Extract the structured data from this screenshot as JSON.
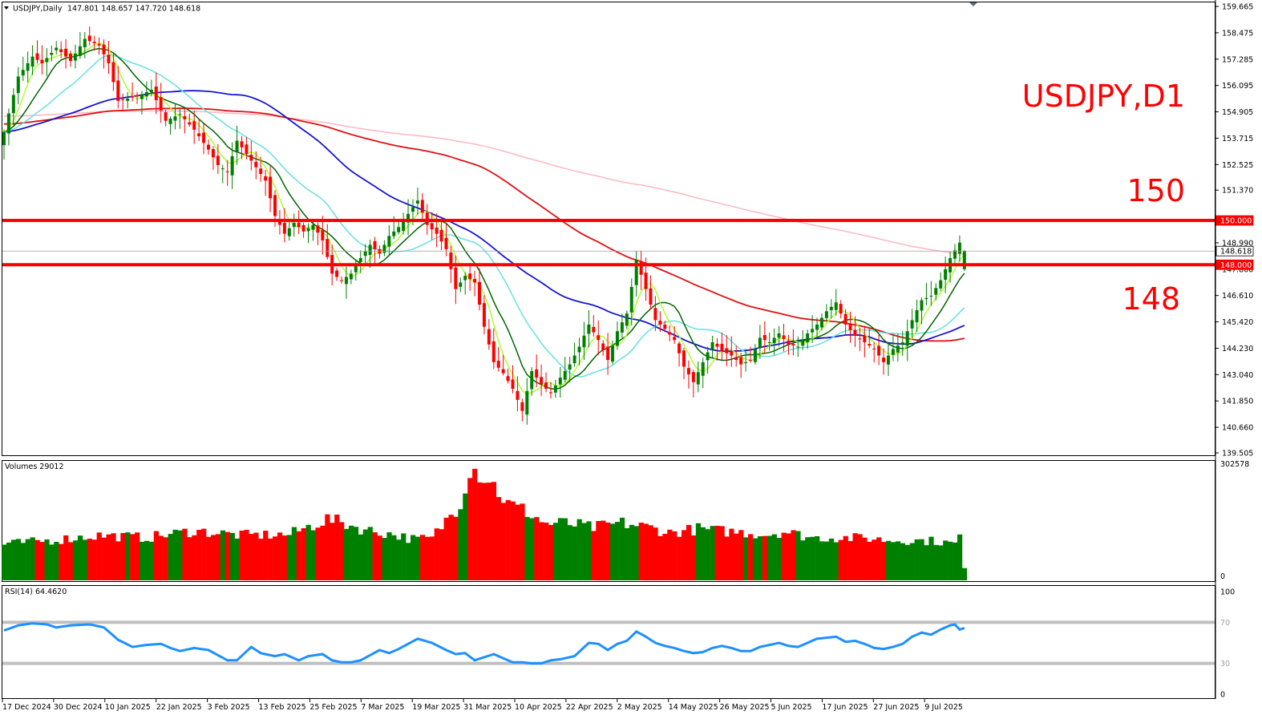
{
  "window": {
    "title": "USDJPY,Daily",
    "ohlc": "147.801 148.657 147.720 148.618"
  },
  "annotations": {
    "symbol_label": "USDJPY,D1",
    "level_150": "150",
    "level_148": "148"
  },
  "colors": {
    "up": "#008000",
    "down": "#ff0000",
    "ma_fast": "#adff2f",
    "ma_dark": "#006400",
    "ma_cyan": "#66e0e0",
    "ma_blue": "#1515d0",
    "ma_red": "#e01010",
    "ma_pink": "#ffb6c1",
    "hline": "#ff0000",
    "rsi": "#1e90ff",
    "rsi_level": "#c0c0c0"
  },
  "chart_data": [
    {
      "type": "candlestick",
      "title": "USDJPY,Daily",
      "ylim": [
        139.505,
        159.665
      ],
      "y_ticks": [
        "159.665",
        "158.475",
        "157.285",
        "156.095",
        "154.905",
        "153.715",
        "152.525",
        "151.370",
        "150.000",
        "148.990",
        "148.618",
        "148.000",
        "147.800",
        "146.610",
        "145.420",
        "144.230",
        "143.040",
        "141.850",
        "140.660",
        "139.505"
      ],
      "price_tags": [
        {
          "label": "150.000",
          "value": 150.0,
          "kind": "level"
        },
        {
          "label": "148.618",
          "value": 148.618,
          "kind": "current"
        },
        {
          "label": "148.000",
          "value": 148.0,
          "kind": "level"
        }
      ],
      "horizontal_levels": [
        150.0,
        148.0
      ],
      "x_tick_labels": [
        "17 Dec 2024",
        "30 Dec 2024",
        "10 Jan 2025",
        "22 Jan 2025",
        "3 Feb 2025",
        "13 Feb 2025",
        "25 Feb 2025",
        "7 Mar 2025",
        "19 Mar 2025",
        "31 Mar 2025",
        "10 Apr 2025",
        "22 Apr 2025",
        "2 May 2025",
        "14 May 2025",
        "26 May 2025",
        "5 Jun 2025",
        "17 Jun 2025",
        "27 Jun 2025",
        "9 Jul 2025"
      ],
      "anchors": [
        [
          0,
          154.0
        ],
        [
          3,
          156.5
        ],
        [
          6,
          157.4
        ],
        [
          8,
          157.1
        ],
        [
          11,
          157.8
        ],
        [
          14,
          157.2
        ],
        [
          17,
          158.2
        ],
        [
          20,
          157.9
        ],
        [
          22,
          157.1
        ],
        [
          24,
          155.4
        ],
        [
          28,
          155.6
        ],
        [
          31,
          155.9
        ],
        [
          34,
          154.5
        ],
        [
          37,
          154.8
        ],
        [
          40,
          154.1
        ],
        [
          43,
          153.2
        ],
        [
          45,
          152.5
        ],
        [
          47,
          152.2
        ],
        [
          49,
          153.6
        ],
        [
          51,
          153.0
        ],
        [
          53,
          152.4
        ],
        [
          55,
          151.8
        ],
        [
          57,
          150.2
        ],
        [
          59,
          149.4
        ],
        [
          61,
          149.9
        ],
        [
          63,
          149.5
        ],
        [
          65,
          149.8
        ],
        [
          67,
          149.1
        ],
        [
          69,
          147.6
        ],
        [
          71,
          147.3
        ],
        [
          73,
          147.6
        ],
        [
          75,
          148.3
        ],
        [
          77,
          148.9
        ],
        [
          79,
          148.5
        ],
        [
          81,
          149.3
        ],
        [
          83,
          149.7
        ],
        [
          85,
          150.3
        ],
        [
          87,
          150.9
        ],
        [
          89,
          149.8
        ],
        [
          91,
          149.4
        ],
        [
          93,
          148.7
        ],
        [
          95,
          146.9
        ],
        [
          97,
          147.5
        ],
        [
          99,
          147.2
        ],
        [
          101,
          145.2
        ],
        [
          103,
          143.6
        ],
        [
          105,
          143.1
        ],
        [
          107,
          142.4
        ],
        [
          109,
          141.4
        ],
        [
          111,
          143.2
        ],
        [
          113,
          142.6
        ],
        [
          115,
          142.2
        ],
        [
          117,
          142.9
        ],
        [
          119,
          143.5
        ],
        [
          121,
          144.3
        ],
        [
          123,
          145.3
        ],
        [
          125,
          144.6
        ],
        [
          127,
          143.7
        ],
        [
          129,
          145.0
        ],
        [
          131,
          145.8
        ],
        [
          133,
          148.2
        ],
        [
          135,
          146.9
        ],
        [
          137,
          145.5
        ],
        [
          139,
          145.1
        ],
        [
          141,
          144.6
        ],
        [
          143,
          143.4
        ],
        [
          145,
          142.7
        ],
        [
          147,
          143.6
        ],
        [
          149,
          144.5
        ],
        [
          151,
          144.1
        ],
        [
          153,
          143.9
        ],
        [
          155,
          143.5
        ],
        [
          157,
          143.7
        ],
        [
          159,
          144.7
        ],
        [
          161,
          144.5
        ],
        [
          163,
          144.9
        ],
        [
          165,
          144.4
        ],
        [
          167,
          144.3
        ],
        [
          169,
          144.9
        ],
        [
          171,
          145.3
        ],
        [
          173,
          145.9
        ],
        [
          175,
          146.3
        ],
        [
          177,
          145.3
        ],
        [
          179,
          144.8
        ],
        [
          181,
          144.5
        ],
        [
          183,
          144.2
        ],
        [
          185,
          143.6
        ],
        [
          187,
          144.2
        ],
        [
          189,
          144.5
        ],
        [
          191,
          145.5
        ],
        [
          193,
          146.4
        ],
        [
          195,
          146.6
        ],
        [
          197,
          147.3
        ],
        [
          199,
          148.3
        ],
        [
          201,
          149.0
        ],
        [
          202,
          148.618
        ]
      ],
      "moving_averages": [
        {
          "id": "ma_fast",
          "period": 5
        },
        {
          "id": "ma_dark",
          "period": 10
        },
        {
          "id": "ma_cyan",
          "period": 20
        },
        {
          "id": "ma_blue",
          "period": 50
        },
        {
          "id": "ma_red",
          "period": 100
        },
        {
          "id": "ma_pink",
          "period": 200
        }
      ]
    },
    {
      "type": "bar",
      "title": "Volumes 29012",
      "ylim": [
        0,
        302578
      ],
      "y_ticks": [
        "302578",
        "0"
      ],
      "anchors": [
        [
          0,
          95000
        ],
        [
          10,
          105000
        ],
        [
          20,
          118000
        ],
        [
          30,
          112000
        ],
        [
          40,
          130000
        ],
        [
          50,
          118000
        ],
        [
          60,
          120000
        ],
        [
          68,
          160000
        ],
        [
          72,
          148000
        ],
        [
          76,
          132000
        ],
        [
          82,
          120000
        ],
        [
          86,
          108000
        ],
        [
          90,
          110000
        ],
        [
          96,
          205000
        ],
        [
          98,
          300000
        ],
        [
          102,
          265000
        ],
        [
          106,
          200000
        ],
        [
          110,
          180000
        ],
        [
          114,
          148000
        ],
        [
          118,
          150000
        ],
        [
          124,
          138000
        ],
        [
          130,
          150000
        ],
        [
          136,
          138000
        ],
        [
          140,
          125000
        ],
        [
          146,
          135000
        ],
        [
          150,
          130000
        ],
        [
          156,
          125000
        ],
        [
          160,
          120000
        ],
        [
          164,
          128000
        ],
        [
          170,
          112000
        ],
        [
          176,
          112000
        ],
        [
          182,
          110000
        ],
        [
          186,
          105000
        ],
        [
          190,
          105000
        ],
        [
          196,
          103000
        ],
        [
          200,
          95000
        ],
        [
          201,
          118000
        ],
        [
          202,
          29012
        ]
      ]
    },
    {
      "type": "line",
      "title": "RSI(14) 64.4620",
      "ylim": [
        0,
        100
      ],
      "y_ticks": [
        "100",
        "70",
        "30",
        "0"
      ],
      "levels": [
        70,
        30
      ],
      "value": 64.462,
      "anchors": [
        [
          0,
          62
        ],
        [
          3,
          67
        ],
        [
          6,
          69
        ],
        [
          9,
          68
        ],
        [
          11,
          65
        ],
        [
          14,
          67
        ],
        [
          18,
          68
        ],
        [
          21,
          65
        ],
        [
          24,
          53
        ],
        [
          27,
          46
        ],
        [
          30,
          48
        ],
        [
          33,
          49
        ],
        [
          35,
          45
        ],
        [
          37,
          42
        ],
        [
          40,
          45
        ],
        [
          43,
          43
        ],
        [
          45,
          38
        ],
        [
          47,
          33
        ],
        [
          49,
          33
        ],
        [
          52,
          46
        ],
        [
          54,
          40
        ],
        [
          57,
          37
        ],
        [
          59,
          39
        ],
        [
          62,
          33
        ],
        [
          64,
          37
        ],
        [
          67,
          39
        ],
        [
          69,
          33
        ],
        [
          71,
          31
        ],
        [
          73,
          31
        ],
        [
          75,
          33
        ],
        [
          77,
          38
        ],
        [
          79,
          43
        ],
        [
          81,
          40
        ],
        [
          83,
          44
        ],
        [
          85,
          49
        ],
        [
          87,
          54
        ],
        [
          90,
          50
        ],
        [
          93,
          43
        ],
        [
          95,
          39
        ],
        [
          97,
          40
        ],
        [
          99,
          33
        ],
        [
          101,
          36
        ],
        [
          103,
          39
        ],
        [
          105,
          35
        ],
        [
          107,
          31
        ],
        [
          109,
          31
        ],
        [
          111,
          30
        ],
        [
          113,
          30
        ],
        [
          115,
          33
        ],
        [
          117,
          34
        ],
        [
          120,
          37
        ],
        [
          123,
          50
        ],
        [
          125,
          49
        ],
        [
          127,
          43
        ],
        [
          129,
          49
        ],
        [
          131,
          52
        ],
        [
          133,
          61
        ],
        [
          135,
          56
        ],
        [
          137,
          50
        ],
        [
          139,
          47
        ],
        [
          141,
          45
        ],
        [
          143,
          42
        ],
        [
          145,
          40
        ],
        [
          147,
          41
        ],
        [
          149,
          45
        ],
        [
          151,
          47
        ],
        [
          153,
          45
        ],
        [
          155,
          42
        ],
        [
          157,
          42
        ],
        [
          159,
          46
        ],
        [
          161,
          48
        ],
        [
          163,
          50
        ],
        [
          165,
          47
        ],
        [
          167,
          46
        ],
        [
          169,
          50
        ],
        [
          171,
          54
        ],
        [
          173,
          55
        ],
        [
          175,
          56
        ],
        [
          177,
          51
        ],
        [
          179,
          52
        ],
        [
          181,
          49
        ],
        [
          183,
          45
        ],
        [
          185,
          44
        ],
        [
          187,
          46
        ],
        [
          189,
          49
        ],
        [
          191,
          56
        ],
        [
          193,
          60
        ],
        [
          195,
          58
        ],
        [
          197,
          63
        ],
        [
          199,
          67
        ],
        [
          200,
          68
        ],
        [
          201,
          63
        ],
        [
          202,
          64.462
        ]
      ]
    }
  ]
}
